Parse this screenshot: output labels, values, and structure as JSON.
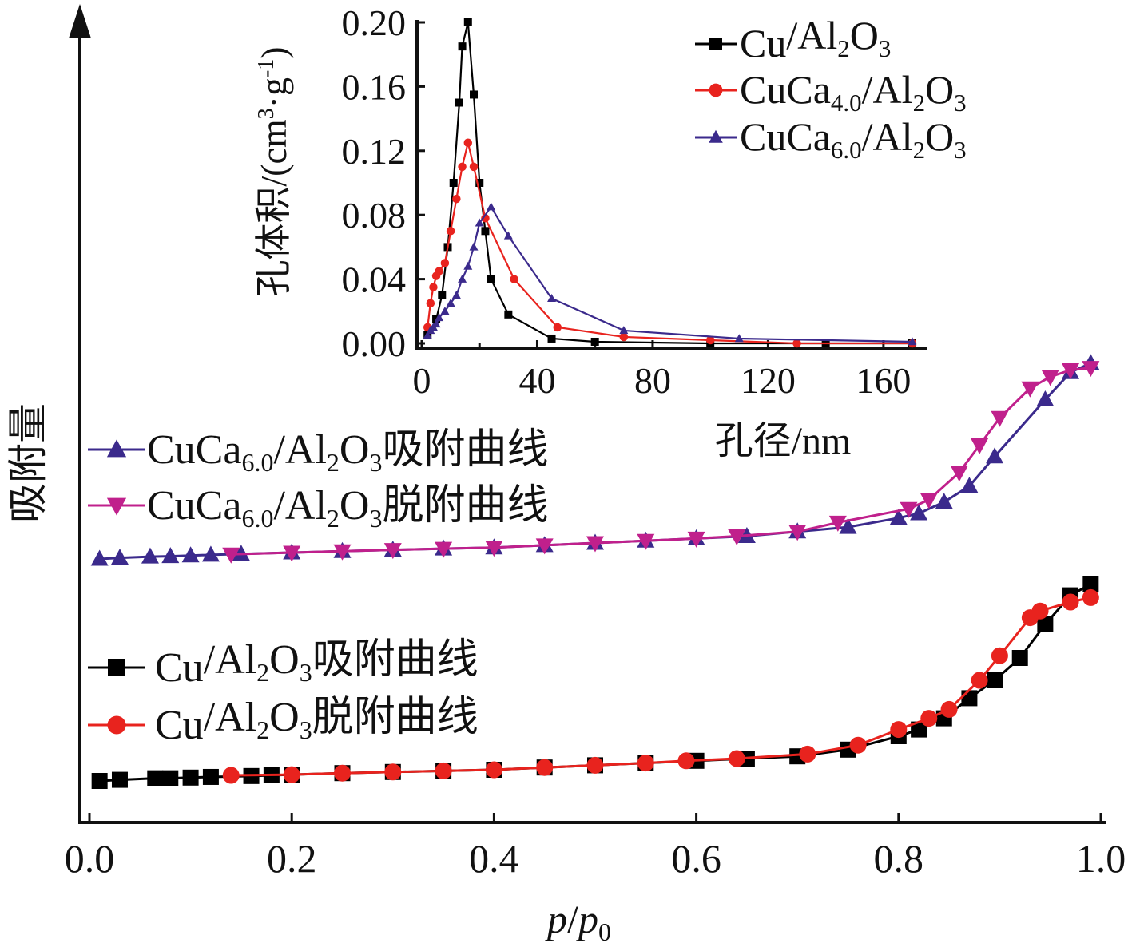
{
  "chart_data": [
    {
      "id": "isotherm",
      "type": "line",
      "xlabel_italic": "p",
      "xlabel_slash": "/",
      "xlabel_italic2": "p",
      "xlabel_sub": "0",
      "ylabel": "吸附量",
      "xlim": [
        0.0,
        1.0
      ],
      "xticks": [
        "0.0",
        "0.2",
        "0.4",
        "0.6",
        "0.8",
        "1.0"
      ],
      "yticks_shown": false,
      "grid": false,
      "series": [
        {
          "name": "Cu/Al2O3吸附曲线",
          "color": "#000000",
          "marker": "square",
          "group": "lower",
          "x": [
            0.01,
            0.03,
            0.065,
            0.08,
            0.1,
            0.12,
            0.16,
            0.18,
            0.2,
            0.25,
            0.3,
            0.35,
            0.4,
            0.45,
            0.5,
            0.55,
            0.6,
            0.65,
            0.7,
            0.75,
            0.8,
            0.82,
            0.845,
            0.87,
            0.895,
            0.92,
            0.945,
            0.97,
            0.99
          ],
          "y": [
            0.0,
            0.005,
            0.012,
            0.012,
            0.015,
            0.018,
            0.022,
            0.025,
            0.028,
            0.035,
            0.04,
            0.045,
            0.05,
            0.06,
            0.07,
            0.08,
            0.09,
            0.1,
            0.11,
            0.14,
            0.2,
            0.23,
            0.28,
            0.37,
            0.45,
            0.55,
            0.7,
            0.83,
            0.88
          ]
        },
        {
          "name": "Cu/Al2O3脱附曲线",
          "color": "#e8231e",
          "marker": "circle",
          "group": "lower",
          "x": [
            0.14,
            0.2,
            0.25,
            0.3,
            0.35,
            0.4,
            0.45,
            0.5,
            0.55,
            0.59,
            0.64,
            0.71,
            0.76,
            0.8,
            0.83,
            0.85,
            0.88,
            0.9,
            0.93,
            0.94,
            0.97,
            0.99
          ],
          "y": [
            0.025,
            0.028,
            0.035,
            0.04,
            0.045,
            0.05,
            0.06,
            0.07,
            0.08,
            0.09,
            0.1,
            0.12,
            0.16,
            0.23,
            0.28,
            0.32,
            0.45,
            0.56,
            0.73,
            0.76,
            0.8,
            0.82
          ]
        },
        {
          "name": "CuCa6.0/Al2O3吸附曲线",
          "color": "#3b2a8c",
          "marker": "triangle-up",
          "group": "upper",
          "x": [
            0.01,
            0.03,
            0.06,
            0.08,
            0.1,
            0.12,
            0.15,
            0.2,
            0.25,
            0.3,
            0.35,
            0.4,
            0.45,
            0.5,
            0.55,
            0.6,
            0.65,
            0.7,
            0.75,
            0.8,
            0.82,
            0.845,
            0.87,
            0.895,
            0.945,
            0.97,
            0.99
          ],
          "y": [
            0.0,
            0.005,
            0.01,
            0.012,
            0.015,
            0.018,
            0.022,
            0.028,
            0.034,
            0.04,
            0.045,
            0.05,
            0.06,
            0.07,
            0.08,
            0.09,
            0.1,
            0.12,
            0.14,
            0.18,
            0.2,
            0.25,
            0.32,
            0.45,
            0.7,
            0.82,
            0.86
          ]
        },
        {
          "name": "CuCa6.0/Al2O3脱附曲线",
          "color": "#c0208c",
          "marker": "triangle-down",
          "group": "upper",
          "x": [
            0.14,
            0.2,
            0.25,
            0.3,
            0.35,
            0.4,
            0.45,
            0.5,
            0.55,
            0.6,
            0.64,
            0.7,
            0.74,
            0.81,
            0.83,
            0.86,
            0.88,
            0.9,
            0.93,
            0.95,
            0.97,
            0.99
          ],
          "y": [
            0.02,
            0.028,
            0.034,
            0.04,
            0.045,
            0.05,
            0.06,
            0.07,
            0.08,
            0.09,
            0.1,
            0.12,
            0.16,
            0.22,
            0.26,
            0.38,
            0.5,
            0.62,
            0.75,
            0.8,
            0.83,
            0.84
          ]
        }
      ],
      "legend_upper": [
        {
          "base": "CuCa",
          "sub1": "6.0",
          "mid": "/Al",
          "sub2": "2",
          "o": "O",
          "sub3": "3",
          "suffix": "吸附曲线",
          "color": "#3b2a8c",
          "marker": "triangle-up"
        },
        {
          "base": "CuCa",
          "sub1": "6.0",
          "mid": "/Al",
          "sub2": "2",
          "o": "O",
          "sub3": "3",
          "suffix": "脱附曲线",
          "color": "#c0208c",
          "marker": "triangle-down"
        }
      ],
      "legend_lower": [
        {
          "base": "Cu",
          "sub1": "",
          "mid": "/Al",
          "sub2": "2",
          "o": "O",
          "sub3": "3",
          "suffix": "吸附曲线",
          "color": "#000000",
          "marker": "square"
        },
        {
          "base": "Cu",
          "sub1": "",
          "mid": "/Al",
          "sub2": "2",
          "o": "O",
          "sub3": "3",
          "suffix": "脱附曲线",
          "color": "#e8231e",
          "marker": "circle"
        }
      ]
    },
    {
      "id": "inset-pore-distribution",
      "type": "line",
      "xlabel": "孔径/nm",
      "ylabel_main": "孔体积/(cm",
      "ylabel_sup1": "3",
      "ylabel_dot": "·g",
      "ylabel_sup2": "-1",
      "ylabel_end": ")",
      "xlim": [
        0,
        170
      ],
      "ylim": [
        0,
        0.2
      ],
      "xticks": [
        "0",
        "40",
        "80",
        "120",
        "160"
      ],
      "yticks": [
        "0.00",
        "0.04",
        "0.08",
        "0.12",
        "0.16",
        "0.20"
      ],
      "grid": false,
      "series": [
        {
          "name": "Cu/Al2O3",
          "color": "#000000",
          "marker": "square",
          "x": [
            2,
            5,
            7,
            9,
            11,
            13,
            14,
            16,
            18,
            20,
            22,
            24,
            30,
            45,
            60,
            100,
            140,
            170
          ],
          "y": [
            0.005,
            0.015,
            0.03,
            0.06,
            0.1,
            0.15,
            0.185,
            0.2,
            0.155,
            0.1,
            0.07,
            0.04,
            0.018,
            0.003,
            0.001,
            0.0,
            0.0,
            0.0
          ]
        },
        {
          "name": "CuCa4.0/Al2O3",
          "color": "#e8231e",
          "marker": "circle",
          "x": [
            2,
            3,
            4,
            5,
            6,
            8,
            10,
            12,
            14,
            16,
            18,
            22,
            32,
            47,
            70,
            100,
            130,
            170
          ],
          "y": [
            0.01,
            0.025,
            0.035,
            0.042,
            0.045,
            0.05,
            0.07,
            0.09,
            0.11,
            0.125,
            0.11,
            0.078,
            0.04,
            0.01,
            0.004,
            0.002,
            0.0,
            0.0
          ]
        },
        {
          "name": "CuCa6.0/Al2O3",
          "color": "#3b2a8c",
          "marker": "triangle-up",
          "x": [
            2,
            3,
            4,
            5,
            6,
            8,
            10,
            12,
            14,
            16,
            18,
            20,
            24,
            30,
            45,
            70,
            110,
            170
          ],
          "y": [
            0.005,
            0.008,
            0.01,
            0.012,
            0.016,
            0.02,
            0.025,
            0.03,
            0.04,
            0.048,
            0.06,
            0.075,
            0.085,
            0.067,
            0.028,
            0.008,
            0.003,
            0.001
          ]
        }
      ],
      "legend": [
        {
          "base": "Cu",
          "sub1": "",
          "mid": "/Al",
          "sub2": "2",
          "o": "O",
          "sub3": "3",
          "color": "#000000",
          "marker": "square"
        },
        {
          "base": "CuCa",
          "sub1": "4.0",
          "mid": "/Al",
          "sub2": "2",
          "o": "O",
          "sub3": "3",
          "color": "#e8231e",
          "marker": "circle"
        },
        {
          "base": "CuCa",
          "sub1": "6.0",
          "mid": "/Al",
          "sub2": "2",
          "o": "O",
          "sub3": "3",
          "color": "#3b2a8c",
          "marker": "triangle-up"
        }
      ]
    }
  ]
}
